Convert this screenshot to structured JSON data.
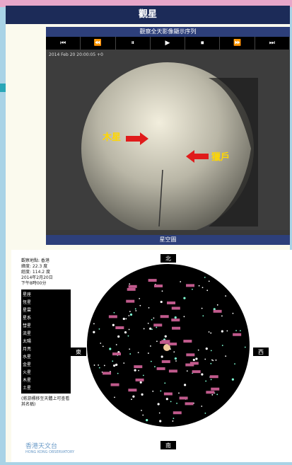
{
  "header": {
    "title": "觀星"
  },
  "camera": {
    "title": "觀察全天影像顯示序列",
    "controls": [
      "⏮",
      "⏪",
      "⏸",
      "▶",
      "⏹",
      "⏩",
      "⏭"
    ],
    "timestamp": "2014 Feb 20 20:00:05 +0",
    "labels": [
      "木星",
      "獵戶"
    ]
  },
  "starmap": {
    "title": "星空圖",
    "directions": {
      "north": "北",
      "east": "東",
      "west": "西",
      "south": "南"
    },
    "info": [
      "觀察地點: 香港",
      "緯度: 22.3 度",
      "經度: 114.2 度",
      "2014年2月20日",
      "下午8時00分"
    ],
    "legend": [
      "星座",
      "恆星",
      "星雲",
      "星系",
      "彗星",
      "流星",
      "太陽",
      "月亮",
      "水星",
      "金星",
      "火星",
      "木星",
      "土星"
    ],
    "note": "(將游標移至天體上可查看其名稱)"
  },
  "logo": {
    "name": "香港天文台",
    "english": "HONG KONG OBSERVATORY"
  }
}
